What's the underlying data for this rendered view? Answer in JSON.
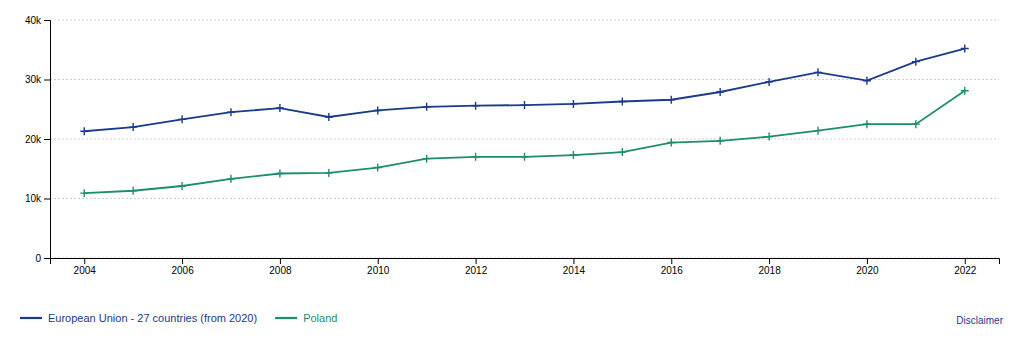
{
  "chart_data": {
    "type": "line",
    "x": [
      2004,
      2005,
      2006,
      2007,
      2008,
      2009,
      2010,
      2011,
      2012,
      2013,
      2014,
      2015,
      2016,
      2017,
      2018,
      2019,
      2020,
      2021,
      2022
    ],
    "series": [
      {
        "name": "European Union - 27 countries (from 2020)",
        "color": "#1a3a8c",
        "marker": "plus",
        "values": [
          21300,
          22000,
          23300,
          24500,
          25200,
          23700,
          24800,
          25400,
          25600,
          25700,
          25900,
          26300,
          26600,
          27900,
          29600,
          31200,
          29800,
          33000,
          35200
        ]
      },
      {
        "name": "Poland",
        "color": "#1e8c6e",
        "marker": "plus",
        "values": [
          10900,
          11300,
          12100,
          13300,
          14200,
          14300,
          15200,
          16700,
          17000,
          17000,
          17300,
          17800,
          19400,
          19700,
          20400,
          21400,
          22500,
          22500,
          28100
        ]
      }
    ],
    "xlim": [
      2003.3,
      2022.7
    ],
    "xticks": [
      2004,
      2006,
      2008,
      2010,
      2012,
      2014,
      2016,
      2018,
      2020,
      2022
    ],
    "ylim": [
      0,
      40000
    ],
    "yticks": [
      0,
      {
        "value": 10000,
        "label": "10k"
      },
      {
        "value": 20000,
        "label": "20k"
      },
      {
        "value": 30000,
        "label": "30k"
      },
      {
        "value": 40000,
        "label": "40k"
      }
    ],
    "grid": true,
    "legend": "bottom",
    "annotations": [
      "Disclaimer"
    ]
  }
}
